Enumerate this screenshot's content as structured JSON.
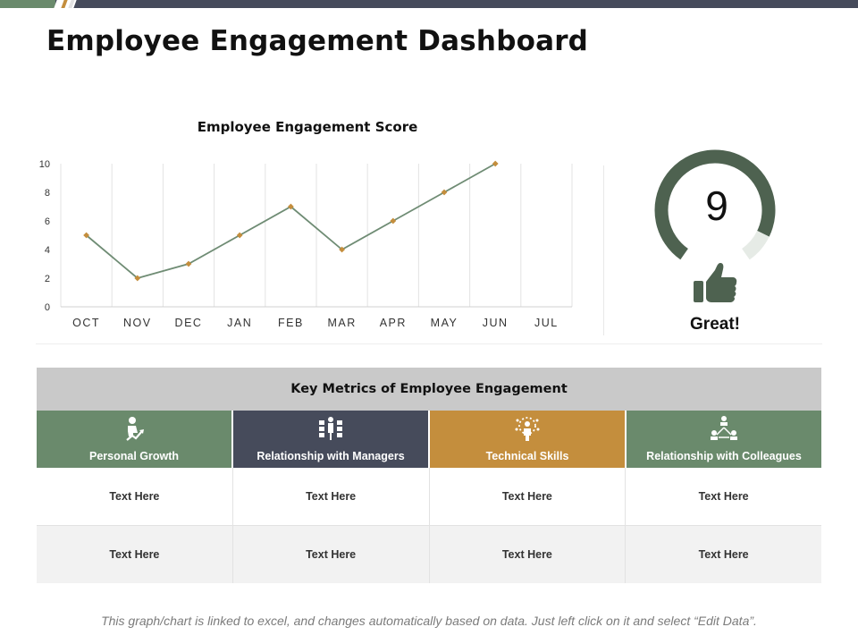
{
  "title": "Employee Engagement Dashboard",
  "colors": {
    "green": "#6a8a6c",
    "dark": "#464b5b",
    "orange": "#c48e3d",
    "line": "#6f8c74",
    "marker": "#c48e3d",
    "gauge": "#4e6250",
    "gauge_rest": "#e6ebe6"
  },
  "chart_data": {
    "type": "line",
    "title": "Employee Engagement Score",
    "categories": [
      "OCT",
      "NOV",
      "DEC",
      "JAN",
      "FEB",
      "MAR",
      "APR",
      "MAY",
      "JUN",
      "JUL"
    ],
    "series": [
      {
        "values": [
          5,
          2,
          3,
          5,
          7,
          4,
          6,
          8,
          10,
          null
        ]
      }
    ],
    "ylim": [
      0,
      10
    ],
    "yticks": [
      0,
      2,
      4,
      6,
      8,
      10
    ],
    "grid": "vertical",
    "legend": "none"
  },
  "gauge": {
    "value": "9",
    "max": 10,
    "label": "Great!",
    "icon": "thumbs-up-icon"
  },
  "metrics": {
    "title": "Key Metrics of Employee Engagement",
    "categories": [
      {
        "label": "Personal Growth",
        "color": "#6a8a6c",
        "icon": "personal-growth-icon"
      },
      {
        "label": "Relationship with Managers",
        "color": "#464b5b",
        "icon": "managers-icon"
      },
      {
        "label": "Technical Skills",
        "color": "#c48e3d",
        "icon": "technical-skills-icon"
      },
      {
        "label": "Relationship with Colleagues",
        "color": "#6a8a6c",
        "icon": "colleagues-icon"
      }
    ],
    "rows": [
      [
        "Text Here",
        "Text Here",
        "Text Here",
        "Text Here"
      ],
      [
        "Text Here",
        "Text Here",
        "Text Here",
        "Text Here"
      ]
    ]
  },
  "footnote": "This graph/chart is linked to excel, and changes automatically based on data. Just left click on it and select “Edit Data”."
}
